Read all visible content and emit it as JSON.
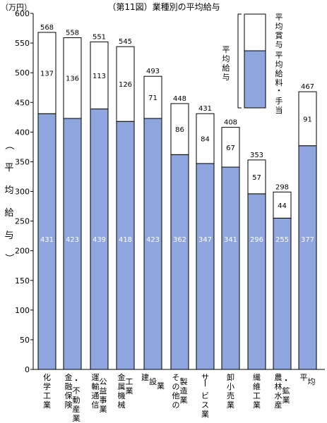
{
  "chart_data": {
    "type": "bar",
    "stacked": true,
    "title": "（第11図）業種別の平均給与",
    "unit_label": "（万円）",
    "ylabel": "（平均給与）",
    "ylim": [
      0,
      600
    ],
    "yticks": [
      0,
      50,
      100,
      150,
      200,
      250,
      300,
      350,
      400,
      450,
      500,
      550,
      600
    ],
    "grid": false,
    "legend_position": "top-right",
    "legend_group_label": "平均給与",
    "categories": [
      "化学工業",
      "金融・保険不動産業",
      "運輸通信公益事業",
      "金属機械工業",
      "建設業",
      "その他の製造業",
      "サービス業",
      "卸小売業",
      "繊維工業",
      "農林水産・鉱業",
      "平均"
    ],
    "category_lines": [
      [
        "化学工業"
      ],
      [
        "金融保険",
        "・不動産業"
      ],
      [
        "運輸通信",
        "公益事業"
      ],
      [
        "金属機械",
        "工業"
      ],
      [
        "建",
        "設",
        "業"
      ],
      [
        "その他の",
        "製造業"
      ],
      [
        "サービス業"
      ],
      [
        "卸小売業"
      ],
      [
        "繊維工業"
      ],
      [
        "農林水産",
        "・鉱業"
      ],
      [
        "平",
        "均"
      ]
    ],
    "series": [
      {
        "name": "平均給料・手当",
        "values": [
          431,
          423,
          439,
          418,
          423,
          362,
          347,
          341,
          296,
          255,
          377
        ],
        "color": "#8ea5de"
      },
      {
        "name": "平均賞与",
        "values": [
          137,
          136,
          113,
          126,
          71,
          86,
          84,
          67,
          57,
          44,
          91
        ],
        "color": "#ffffff"
      }
    ],
    "totals": [
      568,
      558,
      551,
      545,
      493,
      448,
      431,
      408,
      353,
      298,
      467
    ]
  }
}
